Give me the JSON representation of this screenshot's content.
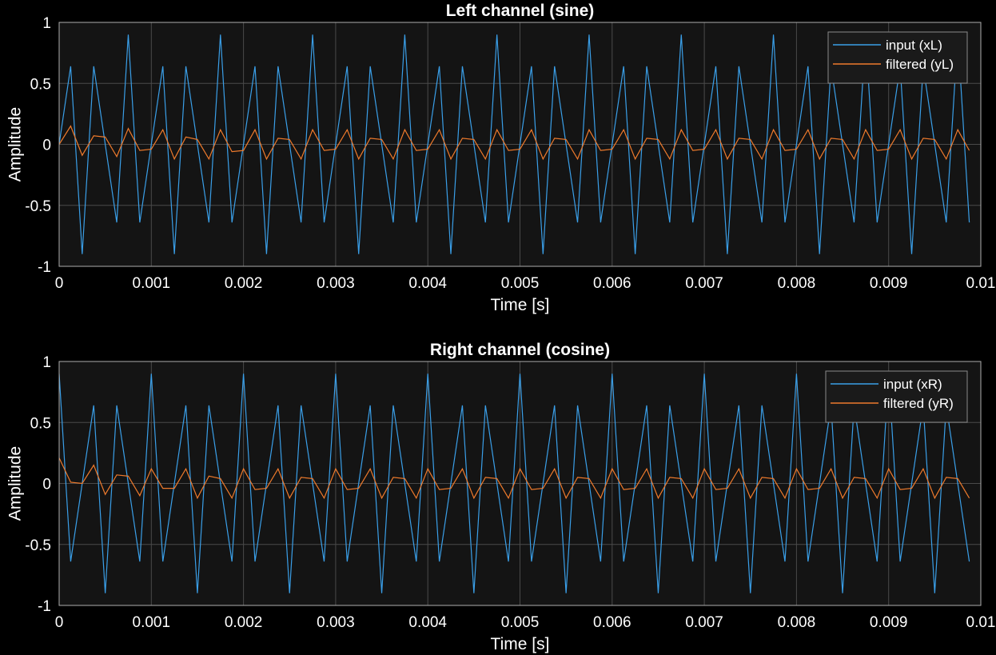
{
  "chart_data": [
    {
      "type": "line",
      "title": "Left channel (sine)",
      "xlabel": "Time [s]",
      "ylabel": "Amplitude",
      "xlim": [
        0,
        0.01
      ],
      "ylim": [
        -1,
        1
      ],
      "xticks": [
        "0",
        "0.001",
        "0.002",
        "0.003",
        "0.004",
        "0.005",
        "0.006",
        "0.007",
        "0.008",
        "0.009",
        "0.01"
      ],
      "yticks": [
        "1",
        "0.5",
        "0",
        "-0.5",
        "-1"
      ],
      "grid": true,
      "legend_position": "top-right",
      "x": [
        0,
        0.000125,
        0.00025,
        0.000375,
        0.0005,
        0.000625,
        0.00075,
        0.000875,
        0.001,
        0.001125,
        0.00125,
        0.001375,
        0.0015,
        0.001625,
        0.00175,
        0.001875,
        0.002,
        0.002125,
        0.00225,
        0.002375,
        0.0025,
        0.002625,
        0.00275,
        0.002875,
        0.003,
        0.003125,
        0.00325,
        0.003375,
        0.0035,
        0.003625,
        0.00375,
        0.003875,
        0.004,
        0.004125,
        0.00425,
        0.004375,
        0.0045,
        0.004625,
        0.00475,
        0.004875,
        0.005,
        0.005125,
        0.00525,
        0.005375,
        0.0055,
        0.005625,
        0.00575,
        0.005875,
        0.006,
        0.006125,
        0.00625,
        0.006375,
        0.0065,
        0.006625,
        0.00675,
        0.006875,
        0.007,
        0.007125,
        0.00725,
        0.007375,
        0.0075,
        0.007625,
        0.00775,
        0.007875,
        0.008,
        0.008125,
        0.00825,
        0.008375,
        0.0085,
        0.008625,
        0.00875,
        0.008875,
        0.009,
        0.009125,
        0.00925,
        0.009375,
        0.0095,
        0.009625,
        0.00975,
        0.009875
      ],
      "series": [
        {
          "name": "input (xL)",
          "color": "#3a9fe8",
          "values": [
            0,
            0.64,
            -0.9,
            0.64,
            0,
            -0.64,
            0.9,
            -0.64,
            0,
            0.64,
            -0.9,
            0.64,
            0,
            -0.64,
            0.9,
            -0.64,
            0,
            0.64,
            -0.9,
            0.64,
            0,
            -0.64,
            0.9,
            -0.64,
            0,
            0.64,
            -0.9,
            0.64,
            0,
            -0.64,
            0.9,
            -0.64,
            0,
            0.64,
            -0.9,
            0.64,
            0,
            -0.64,
            0.9,
            -0.64,
            0,
            0.64,
            -0.9,
            0.64,
            0,
            -0.64,
            0.9,
            -0.64,
            0,
            0.64,
            -0.9,
            0.64,
            0,
            -0.64,
            0.9,
            -0.64,
            0,
            0.64,
            -0.9,
            0.64,
            0,
            -0.64,
            0.9,
            -0.64,
            0,
            0.64,
            -0.9,
            0.64,
            0,
            -0.64,
            0.9,
            -0.64,
            0,
            0.64,
            -0.9,
            0.64,
            0,
            -0.64,
            0.9,
            -0.64
          ]
        },
        {
          "name": "filtered (yL)",
          "color": "#ee7a2c",
          "values": [
            0,
            0.15,
            -0.09,
            0.07,
            0.06,
            -0.1,
            0.13,
            -0.05,
            -0.04,
            0.12,
            -0.12,
            0.06,
            0.04,
            -0.12,
            0.12,
            -0.06,
            -0.05,
            0.12,
            -0.12,
            0.05,
            0.04,
            -0.12,
            0.12,
            -0.05,
            -0.04,
            0.12,
            -0.12,
            0.05,
            0.04,
            -0.12,
            0.12,
            -0.05,
            -0.04,
            0.12,
            -0.12,
            0.05,
            0.04,
            -0.12,
            0.12,
            -0.05,
            -0.04,
            0.12,
            -0.12,
            0.05,
            0.04,
            -0.12,
            0.12,
            -0.05,
            -0.04,
            0.12,
            -0.12,
            0.05,
            0.04,
            -0.12,
            0.12,
            -0.05,
            -0.04,
            0.12,
            -0.12,
            0.05,
            0.04,
            -0.12,
            0.12,
            -0.05,
            -0.04,
            0.12,
            -0.12,
            0.05,
            0.04,
            -0.12,
            0.12,
            -0.05,
            -0.04,
            0.12,
            -0.12,
            0.05,
            0.04,
            -0.12,
            0.12,
            -0.05
          ]
        }
      ]
    },
    {
      "type": "line",
      "title": "Right channel (cosine)",
      "xlabel": "Time [s]",
      "ylabel": "Amplitude",
      "xlim": [
        0,
        0.01
      ],
      "ylim": [
        -1,
        1
      ],
      "xticks": [
        "0",
        "0.001",
        "0.002",
        "0.003",
        "0.004",
        "0.005",
        "0.006",
        "0.007",
        "0.008",
        "0.009",
        "0.01"
      ],
      "yticks": [
        "1",
        "0.5",
        "0",
        "-0.5",
        "-1"
      ],
      "grid": true,
      "legend_position": "top-right",
      "x": [
        0,
        0.000125,
        0.00025,
        0.000375,
        0.0005,
        0.000625,
        0.00075,
        0.000875,
        0.001,
        0.001125,
        0.00125,
        0.001375,
        0.0015,
        0.001625,
        0.00175,
        0.001875,
        0.002,
        0.002125,
        0.00225,
        0.002375,
        0.0025,
        0.002625,
        0.00275,
        0.002875,
        0.003,
        0.003125,
        0.00325,
        0.003375,
        0.0035,
        0.003625,
        0.00375,
        0.003875,
        0.004,
        0.004125,
        0.00425,
        0.004375,
        0.0045,
        0.004625,
        0.00475,
        0.004875,
        0.005,
        0.005125,
        0.00525,
        0.005375,
        0.0055,
        0.005625,
        0.00575,
        0.005875,
        0.006,
        0.006125,
        0.00625,
        0.006375,
        0.0065,
        0.006625,
        0.00675,
        0.006875,
        0.007,
        0.007125,
        0.00725,
        0.007375,
        0.0075,
        0.007625,
        0.00775,
        0.007875,
        0.008,
        0.008125,
        0.00825,
        0.008375,
        0.0085,
        0.008625,
        0.00875,
        0.008875,
        0.009,
        0.009125,
        0.00925,
        0.009375,
        0.0095,
        0.009625,
        0.00975,
        0.009875
      ],
      "series": [
        {
          "name": "input (xR)",
          "color": "#3a9fe8",
          "values": [
            0.9,
            -0.64,
            0,
            0.64,
            -0.9,
            0.64,
            0,
            -0.64,
            0.9,
            -0.64,
            0,
            0.64,
            -0.9,
            0.64,
            0,
            -0.64,
            0.9,
            -0.64,
            0,
            0.64,
            -0.9,
            0.64,
            0,
            -0.64,
            0.9,
            -0.64,
            0,
            0.64,
            -0.9,
            0.64,
            0,
            -0.64,
            0.9,
            -0.64,
            0,
            0.64,
            -0.9,
            0.64,
            0,
            -0.64,
            0.9,
            -0.64,
            0,
            0.64,
            -0.9,
            0.64,
            0,
            -0.64,
            0.9,
            -0.64,
            0,
            0.64,
            -0.9,
            0.64,
            0,
            -0.64,
            0.9,
            -0.64,
            0,
            0.64,
            -0.9,
            0.64,
            0,
            -0.64,
            0.9,
            -0.64,
            0,
            0.64,
            -0.9,
            0.64,
            0,
            -0.64,
            0.9,
            -0.64,
            0,
            0.64,
            -0.9,
            0.64,
            0,
            -0.64
          ]
        },
        {
          "name": "filtered (yR)",
          "color": "#ee7a2c",
          "values": [
            0.21,
            0.01,
            0,
            0.15,
            -0.09,
            0.07,
            0.06,
            -0.1,
            0.12,
            -0.04,
            -0.04,
            0.12,
            -0.12,
            0.06,
            0.04,
            -0.12,
            0.12,
            -0.05,
            -0.04,
            0.12,
            -0.12,
            0.05,
            0.04,
            -0.12,
            0.12,
            -0.05,
            -0.04,
            0.12,
            -0.12,
            0.05,
            0.04,
            -0.12,
            0.12,
            -0.05,
            -0.04,
            0.12,
            -0.12,
            0.05,
            0.04,
            -0.12,
            0.12,
            -0.05,
            -0.04,
            0.12,
            -0.12,
            0.05,
            0.04,
            -0.12,
            0.12,
            -0.05,
            -0.04,
            0.12,
            -0.12,
            0.05,
            0.04,
            -0.12,
            0.12,
            -0.05,
            -0.04,
            0.12,
            -0.12,
            0.05,
            0.04,
            -0.12,
            0.12,
            -0.05,
            -0.04,
            0.12,
            -0.12,
            0.05,
            0.04,
            -0.12,
            0.12,
            -0.05,
            -0.04,
            0.12,
            -0.12,
            0.05,
            0.04,
            -0.12
          ]
        }
      ]
    }
  ]
}
